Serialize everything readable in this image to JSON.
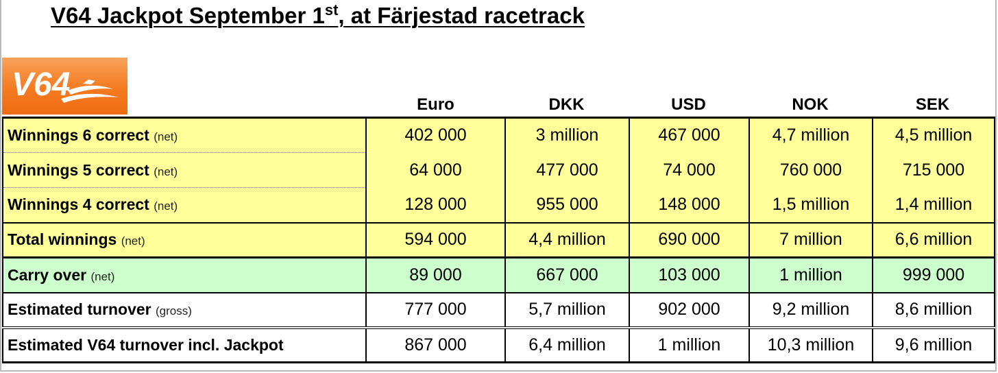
{
  "title": {
    "main": "V64 Jackpot September 1",
    "sup": "st",
    "rest": ", at Färjestad racetrack"
  },
  "logo": {
    "text": "V64",
    "icon": "horse-trotter-logo-icon",
    "color": "#f47a20"
  },
  "columns": [
    "Euro",
    "DKK",
    "USD",
    "NOK",
    "SEK"
  ],
  "rows": [
    {
      "label": "Winnings 6 correct",
      "note": "(net)",
      "values": [
        "402 000",
        "3 million",
        "467 000",
        "4,7 million",
        "4,5 million"
      ]
    },
    {
      "label": "Winnings 5 correct",
      "note": "(net)",
      "values": [
        "64 000",
        "477 000",
        "74 000",
        "760 000",
        "715 000"
      ]
    },
    {
      "label": "Winnings 4 correct",
      "note": "(net)",
      "values": [
        "128 000",
        "955 000",
        "148 000",
        "1,5 million",
        "1,4 million"
      ]
    },
    {
      "label": "Total winnings",
      "note": "(net)",
      "values": [
        "594 000",
        "4,4 million",
        "690 000",
        "7 million",
        "6,6 million"
      ]
    },
    {
      "label": "Carry over",
      "note": "(net)",
      "values": [
        "89 000",
        "667 000",
        "103 000",
        "1 million",
        "999 000"
      ]
    },
    {
      "label": "Estimated turnover",
      "note": "(gross)",
      "values": [
        "777 000",
        "5,7 million",
        "902 000",
        "9,2 million",
        "8,6 million"
      ]
    },
    {
      "label": "Estimated V64 turnover incl. Jackpot",
      "note": "",
      "values": [
        "867 000",
        "6,4 million",
        "1 million",
        "10,3 million",
        "9,6 million"
      ]
    }
  ],
  "colors": {
    "yellow": "#ffff99",
    "green": "#ccffcc",
    "white": "#ffffff"
  }
}
